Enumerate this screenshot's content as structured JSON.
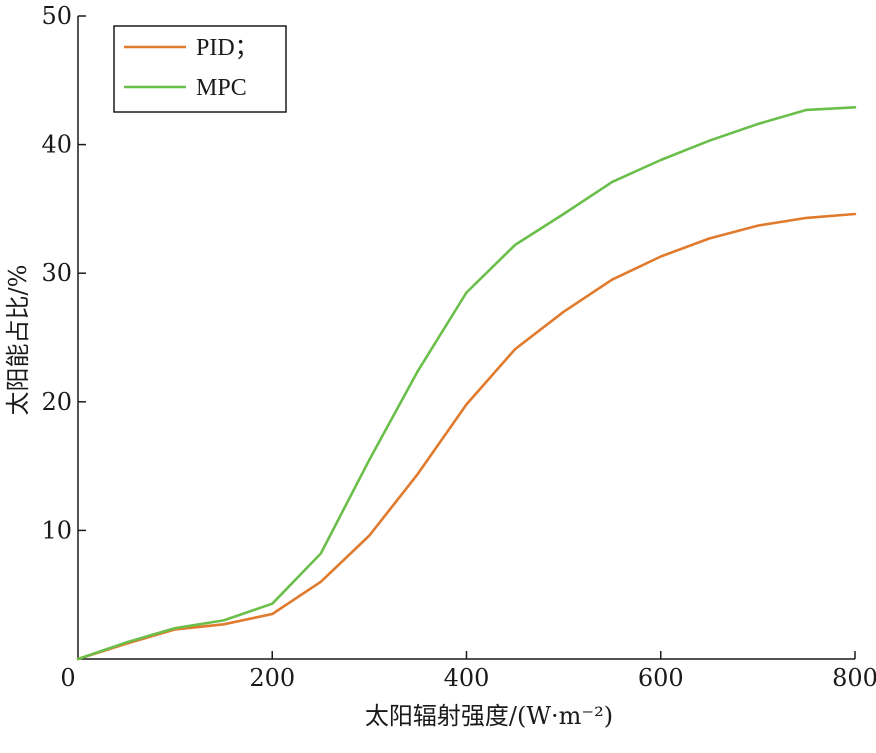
{
  "chart_data": {
    "type": "line",
    "xlabel": "太阳辐射强度/(W·m⁻²)",
    "ylabel": "太阳能占比/%",
    "xlim": [
      0,
      800
    ],
    "ylim": [
      0,
      50
    ],
    "x_ticks": [
      "0",
      "200",
      "400",
      "600",
      "800"
    ],
    "y_ticks": [
      "10",
      "20",
      "30",
      "40",
      "50"
    ],
    "grid": false,
    "legend_position": "top-left",
    "series": [
      {
        "name": "PID；",
        "color": "#e07b2e",
        "x": [
          0,
          50,
          100,
          150,
          200,
          250,
          300,
          350,
          400,
          450,
          500,
          550,
          600,
          650,
          700,
          750,
          800
        ],
        "y": [
          0,
          1.2,
          2.3,
          2.7,
          3.5,
          6.0,
          9.6,
          14.4,
          19.8,
          24.1,
          27.0,
          29.5,
          31.3,
          32.7,
          33.7,
          34.3,
          34.6
        ]
      },
      {
        "name": "MPC",
        "color": "#6abf4b",
        "x": [
          0,
          50,
          100,
          150,
          200,
          250,
          300,
          350,
          400,
          450,
          500,
          550,
          600,
          650,
          700,
          750,
          800
        ],
        "y": [
          0,
          1.3,
          2.4,
          3.0,
          4.3,
          8.2,
          15.5,
          22.4,
          28.5,
          32.2,
          34.6,
          37.1,
          38.8,
          40.3,
          41.6,
          42.7,
          42.9
        ]
      }
    ]
  }
}
